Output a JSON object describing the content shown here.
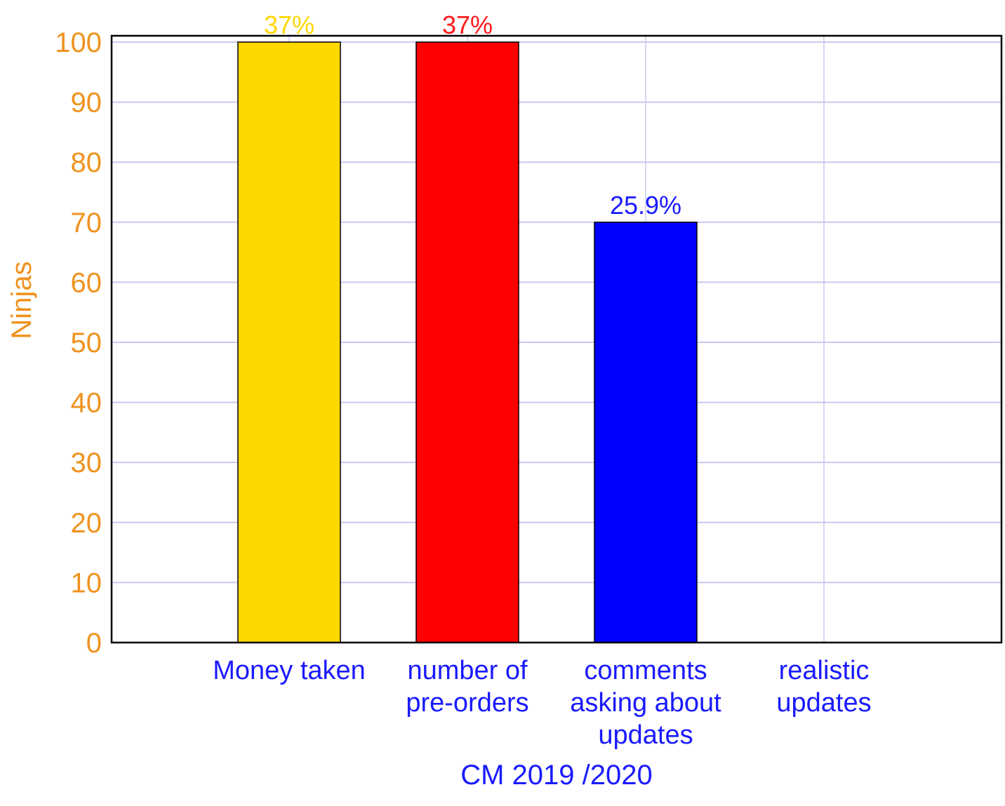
{
  "chart_data": {
    "type": "bar",
    "title": "",
    "xlabel": "CM 2019 /2020",
    "ylabel": "Ninjas",
    "ylim": [
      0,
      100
    ],
    "yticks": [
      0,
      10,
      20,
      30,
      40,
      50,
      60,
      70,
      80,
      90,
      100
    ],
    "grid": true,
    "legend": "none",
    "categories": [
      [
        "Money taken"
      ],
      [
        "number of",
        "pre-orders"
      ],
      [
        "comments",
        "asking about",
        "updates"
      ],
      [
        "realistic",
        "updates"
      ]
    ],
    "values": [
      100,
      100,
      70,
      0
    ],
    "data_labels": [
      "37%",
      "37%",
      "25.9%",
      ""
    ],
    "bar_colors": [
      "#ffd700",
      "#ff0000",
      "#0000ff",
      "#000000"
    ],
    "label_colors": [
      "#ffd700",
      "#ff1a1a",
      "#1a1aff",
      "#000000"
    ],
    "colors": {
      "axis_text": "#f0921e",
      "category_text": "#1a1aff",
      "grid": "#c8c8f0",
      "frame": "#000000"
    }
  }
}
